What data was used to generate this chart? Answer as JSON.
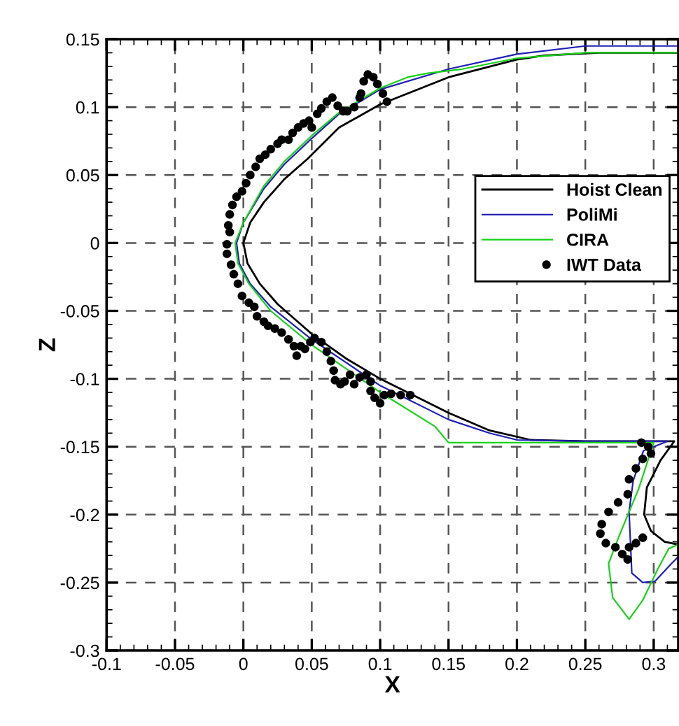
{
  "chart_data": {
    "type": "line",
    "xlabel": "X",
    "ylabel": "Z",
    "xlim": [
      -0.1,
      0.318
    ],
    "ylim": [
      -0.3,
      0.15
    ],
    "xticks": [
      -0.1,
      -0.05,
      0,
      0.05,
      0.1,
      0.15,
      0.2,
      0.25,
      0.3
    ],
    "yticks": [
      -0.3,
      -0.25,
      -0.2,
      -0.15,
      -0.1,
      -0.05,
      0,
      0.05,
      0.1,
      0.15
    ],
    "grid": true,
    "legend": "right",
    "series": [
      {
        "name": "Hoist Clean",
        "type": "line",
        "color": "#000000",
        "x": [
          0.318,
          0.26,
          0.22,
          0.2,
          0.15,
          0.1,
          0.07,
          0.047,
          0.03,
          0.015,
          0.005,
          0.0,
          0.003,
          0.012,
          0.025,
          0.05,
          0.075,
          0.1,
          0.15,
          0.18,
          0.21,
          0.25,
          0.3,
          0.315,
          0.305,
          0.295,
          0.293,
          0.298,
          0.308,
          0.318
        ],
        "values": [
          0.14,
          0.14,
          0.138,
          0.135,
          0.122,
          0.102,
          0.085,
          0.062,
          0.047,
          0.03,
          0.015,
          0.0,
          -0.015,
          -0.03,
          -0.045,
          -0.067,
          -0.085,
          -0.1,
          -0.125,
          -0.138,
          -0.145,
          -0.146,
          -0.146,
          -0.146,
          -0.16,
          -0.18,
          -0.2,
          -0.212,
          -0.22,
          -0.222
        ]
      },
      {
        "name": "PoliMi",
        "type": "line",
        "color": "#1f1fb4",
        "x": [
          0.318,
          0.25,
          0.2,
          0.15,
          0.1,
          0.07,
          0.05,
          0.03,
          0.015,
          0.0,
          -0.005,
          -0.003,
          0.005,
          0.02,
          0.05,
          0.1,
          0.15,
          0.18,
          0.2,
          0.25,
          0.31,
          0.2925,
          0.285,
          0.282,
          0.284,
          0.292,
          0.301,
          0.313,
          0.318
        ],
        "values": [
          0.145,
          0.145,
          0.139,
          0.128,
          0.113,
          0.095,
          0.077,
          0.058,
          0.04,
          0.015,
          0.0,
          -0.015,
          -0.03,
          -0.047,
          -0.071,
          -0.105,
          -0.13,
          -0.14,
          -0.145,
          -0.146,
          -0.146,
          -0.153,
          -0.175,
          -0.198,
          -0.243,
          -0.25,
          -0.249,
          -0.236,
          -0.231
        ]
      },
      {
        "name": "CIRA",
        "type": "line",
        "color": "#19d219",
        "x": [
          0.318,
          0.25,
          0.2,
          0.16,
          0.135,
          0.12,
          0.1,
          0.07,
          0.05,
          0.03,
          0.015,
          0.0,
          -0.006,
          -0.004,
          0.004,
          0.02,
          0.05,
          0.1,
          0.14,
          0.15,
          0.2,
          0.3,
          0.289,
          0.275,
          0.267,
          0.27,
          0.282,
          0.292,
          0.303,
          0.311,
          0.318
        ],
        "values": [
          0.14,
          0.14,
          0.136,
          0.128,
          0.125,
          0.122,
          0.114,
          0.096,
          0.079,
          0.06,
          0.042,
          0.015,
          0.0,
          -0.015,
          -0.03,
          -0.05,
          -0.075,
          -0.11,
          -0.135,
          -0.147,
          -0.147,
          -0.147,
          -0.181,
          -0.215,
          -0.236,
          -0.261,
          -0.277,
          -0.263,
          -0.24,
          -0.225,
          -0.222
        ]
      },
      {
        "name": "IWT Data",
        "type": "scatter",
        "color": "#000000",
        "marker": "circle",
        "x": [
          0.105,
          0.102,
          0.098,
          0.095,
          0.091,
          0.088,
          0.086,
          0.085,
          0.081,
          0.076,
          0.073,
          0.069,
          0.065,
          0.061,
          0.057,
          0.054,
          0.05,
          0.048,
          0.044,
          0.04,
          0.036,
          0.033,
          0.028,
          0.025,
          0.02,
          0.016,
          0.012,
          0.009,
          0.005,
          0.002,
          -0.001,
          -0.005,
          -0.008,
          -0.01,
          -0.011,
          -0.01,
          -0.012,
          -0.012,
          -0.009,
          -0.007,
          -0.004,
          -0.001,
          0.004,
          0.008,
          0.01,
          0.015,
          0.018,
          0.023,
          0.028,
          0.033,
          0.037,
          0.039,
          0.042,
          0.045,
          0.049,
          0.052,
          0.057,
          0.061,
          0.064,
          0.066,
          0.067,
          0.071,
          0.074,
          0.078,
          0.081,
          0.085,
          0.09,
          0.093,
          0.093,
          0.096,
          0.1,
          0.103,
          0.108,
          0.115,
          0.122,
          0.291,
          0.296,
          0.298,
          0.292,
          0.287,
          0.282,
          0.281,
          0.274,
          0.267,
          0.262,
          0.261,
          0.265,
          0.272,
          0.277,
          0.281,
          0.282,
          0.287,
          0.292
        ],
        "values": [
          0.104,
          0.11,
          0.117,
          0.122,
          0.124,
          0.119,
          0.11,
          0.107,
          0.1,
          0.097,
          0.097,
          0.101,
          0.107,
          0.104,
          0.099,
          0.095,
          0.085,
          0.09,
          0.088,
          0.085,
          0.081,
          0.076,
          0.076,
          0.073,
          0.069,
          0.065,
          0.062,
          0.056,
          0.05,
          0.044,
          0.038,
          0.034,
          0.028,
          0.021,
          0.013,
          0.008,
          -0.001,
          -0.008,
          -0.016,
          -0.023,
          -0.03,
          -0.039,
          -0.044,
          -0.047,
          -0.054,
          -0.058,
          -0.061,
          -0.063,
          -0.066,
          -0.071,
          -0.076,
          -0.083,
          -0.076,
          -0.078,
          -0.073,
          -0.07,
          -0.073,
          -0.08,
          -0.087,
          -0.094,
          -0.101,
          -0.104,
          -0.102,
          -0.097,
          -0.104,
          -0.099,
          -0.097,
          -0.102,
          -0.109,
          -0.114,
          -0.118,
          -0.112,
          -0.111,
          -0.112,
          -0.112,
          -0.147,
          -0.15,
          -0.155,
          -0.159,
          -0.166,
          -0.174,
          -0.185,
          -0.191,
          -0.198,
          -0.207,
          -0.214,
          -0.221,
          -0.224,
          -0.229,
          -0.233,
          -0.224,
          -0.221,
          -0.217
        ]
      }
    ]
  }
}
